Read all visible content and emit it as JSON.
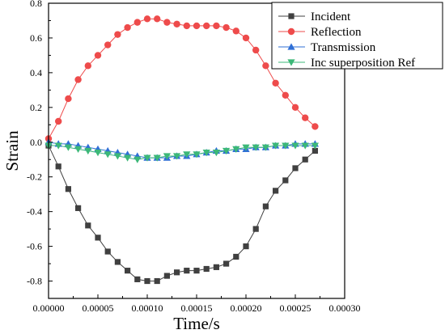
{
  "chart_data": {
    "type": "line",
    "title": "",
    "xlabel": "Time/s",
    "ylabel": "Strain",
    "xlim": [
      0,
      0.0003
    ],
    "ylim": [
      -0.9,
      0.8
    ],
    "x_ticks": [
      "0.00000",
      "0.00005",
      "0.00010",
      "0.00015",
      "0.00020",
      "0.00025",
      "0.00030"
    ],
    "y_ticks": [
      "0.8",
      "0.6",
      "0.4",
      "0.2",
      "0.0",
      "-0.2",
      "-0.4",
      "-0.6",
      "-0.8"
    ],
    "grid": false,
    "legend_position": "top-right",
    "series": [
      {
        "name": "Incident",
        "color": "#404040",
        "marker": "square",
        "x": [
          0.0,
          1e-05,
          2e-05,
          3e-05,
          4e-05,
          5e-05,
          6e-05,
          7e-05,
          8e-05,
          9e-05,
          0.0001,
          0.00011,
          0.00012,
          0.00013,
          0.00014,
          0.00015,
          0.00016,
          0.00017,
          0.00018,
          0.00019,
          0.0002,
          0.00021,
          0.00022,
          0.00023,
          0.00024,
          0.00025,
          0.00026,
          0.00027
        ],
        "y": [
          -0.02,
          -0.14,
          -0.27,
          -0.38,
          -0.48,
          -0.55,
          -0.63,
          -0.69,
          -0.74,
          -0.79,
          -0.8,
          -0.8,
          -0.77,
          -0.75,
          -0.74,
          -0.74,
          -0.73,
          -0.72,
          -0.7,
          -0.66,
          -0.6,
          -0.5,
          -0.37,
          -0.28,
          -0.22,
          -0.15,
          -0.1,
          -0.05
        ]
      },
      {
        "name": "Reflection",
        "color": "#ee4b4b",
        "marker": "circle",
        "x": [
          0.0,
          1e-05,
          2e-05,
          3e-05,
          4e-05,
          5e-05,
          6e-05,
          7e-05,
          8e-05,
          9e-05,
          0.0001,
          0.00011,
          0.00012,
          0.00013,
          0.00014,
          0.00015,
          0.00016,
          0.00017,
          0.00018,
          0.00019,
          0.0002,
          0.00021,
          0.00022,
          0.00023,
          0.00024,
          0.00025,
          0.00026,
          0.00027
        ],
        "y": [
          0.02,
          0.12,
          0.25,
          0.36,
          0.44,
          0.5,
          0.56,
          0.62,
          0.66,
          0.69,
          0.71,
          0.71,
          0.69,
          0.68,
          0.67,
          0.67,
          0.67,
          0.67,
          0.66,
          0.64,
          0.6,
          0.53,
          0.44,
          0.34,
          0.27,
          0.2,
          0.14,
          0.09
        ]
      },
      {
        "name": "Transmission",
        "color": "#2f6fd6",
        "marker": "triangle-up",
        "x": [
          0.0,
          1e-05,
          2e-05,
          3e-05,
          4e-05,
          5e-05,
          6e-05,
          7e-05,
          8e-05,
          9e-05,
          0.0001,
          0.00011,
          0.00012,
          0.00013,
          0.00014,
          0.00015,
          0.00016,
          0.00017,
          0.00018,
          0.00019,
          0.0002,
          0.00021,
          0.00022,
          0.00023,
          0.00024,
          0.00025,
          0.00026,
          0.00027
        ],
        "y": [
          0.0,
          -0.01,
          -0.01,
          -0.02,
          -0.03,
          -0.04,
          -0.05,
          -0.06,
          -0.07,
          -0.08,
          -0.09,
          -0.09,
          -0.09,
          -0.08,
          -0.08,
          -0.07,
          -0.06,
          -0.05,
          -0.05,
          -0.04,
          -0.04,
          -0.03,
          -0.03,
          -0.02,
          -0.02,
          -0.01,
          -0.01,
          -0.01
        ]
      },
      {
        "name": "Inc superposition Ref",
        "color": "#3cb878",
        "marker": "triangle-down",
        "x": [
          0.0,
          1e-05,
          2e-05,
          3e-05,
          4e-05,
          5e-05,
          6e-05,
          7e-05,
          8e-05,
          9e-05,
          0.0001,
          0.00011,
          0.00012,
          0.00013,
          0.00014,
          0.00015,
          0.00016,
          0.00017,
          0.00018,
          0.00019,
          0.0002,
          0.00021,
          0.00022,
          0.00023,
          0.00024,
          0.00025,
          0.00026,
          0.00027
        ],
        "y": [
          -0.02,
          -0.02,
          -0.03,
          -0.04,
          -0.05,
          -0.06,
          -0.07,
          -0.08,
          -0.09,
          -0.1,
          -0.09,
          -0.09,
          -0.08,
          -0.08,
          -0.07,
          -0.07,
          -0.06,
          -0.06,
          -0.05,
          -0.04,
          -0.03,
          -0.03,
          -0.03,
          -0.02,
          -0.02,
          -0.02,
          -0.02,
          -0.02
        ]
      }
    ]
  }
}
